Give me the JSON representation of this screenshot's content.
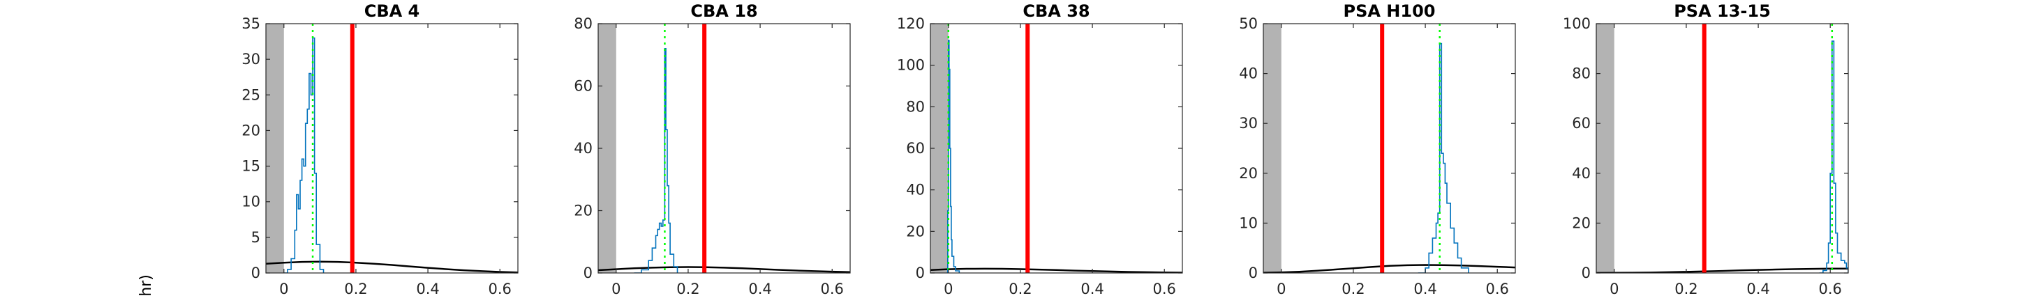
{
  "figure": {
    "ylabel_fragment": "hr)"
  },
  "colors": {
    "shade": "#b3b3b3",
    "histogram": "#0072bd",
    "green_line": "#00ff00",
    "red_line": "#ff0000",
    "curve": "#000000",
    "axis": "#262626"
  },
  "chart_data": [
    {
      "type": "line",
      "title": "CBA 4",
      "xlim": [
        -0.05,
        0.65
      ],
      "ylim": [
        0,
        35
      ],
      "xticks": [
        0,
        0.2,
        0.4,
        0.6
      ],
      "yticks": [
        0,
        5,
        10,
        15,
        20,
        25,
        30,
        35
      ],
      "shaded_x": [
        -0.05,
        0.0
      ],
      "green_x": 0.08,
      "red_x": 0.19,
      "curve": {
        "x": [
          -0.05,
          0.0,
          0.05,
          0.1,
          0.15,
          0.2,
          0.25,
          0.3,
          0.35,
          0.4,
          0.45,
          0.5,
          0.55,
          0.6,
          0.65
        ],
        "y": [
          1.3,
          1.45,
          1.55,
          1.58,
          1.55,
          1.45,
          1.3,
          1.12,
          0.92,
          0.72,
          0.54,
          0.38,
          0.25,
          0.15,
          0.08
        ]
      },
      "histogram": {
        "x": [
          0.0,
          0.01,
          0.02,
          0.03,
          0.035,
          0.04,
          0.045,
          0.05,
          0.055,
          0.06,
          0.065,
          0.07,
          0.075,
          0.08,
          0.085,
          0.09,
          0.1,
          0.11
        ],
        "y": [
          0,
          0.5,
          2,
          6,
          11,
          9,
          13,
          16,
          15,
          21,
          23,
          28,
          25,
          33,
          14,
          4,
          0.5,
          0
        ]
      }
    },
    {
      "type": "line",
      "title": "CBA 18",
      "xlim": [
        -0.05,
        0.65
      ],
      "ylim": [
        0,
        80
      ],
      "xticks": [
        0,
        0.2,
        0.4,
        0.6
      ],
      "yticks": [
        0,
        20,
        40,
        60,
        80
      ],
      "shaded_x": [
        -0.05,
        0.0
      ],
      "green_x": 0.135,
      "red_x": 0.245,
      "curve": {
        "x": [
          -0.05,
          0.0,
          0.05,
          0.1,
          0.15,
          0.2,
          0.25,
          0.3,
          0.35,
          0.4,
          0.45,
          0.5,
          0.55,
          0.6,
          0.65
        ],
        "y": [
          0.9,
          1.2,
          1.5,
          1.7,
          1.85,
          1.9,
          1.85,
          1.7,
          1.5,
          1.25,
          1.0,
          0.78,
          0.58,
          0.42,
          0.3
        ]
      },
      "histogram": {
        "x": [
          0.05,
          0.07,
          0.09,
          0.1,
          0.11,
          0.115,
          0.12,
          0.125,
          0.13,
          0.135,
          0.138,
          0.142,
          0.146,
          0.15,
          0.16,
          0.17
        ],
        "y": [
          0,
          1,
          4,
          8,
          12,
          14,
          16,
          15,
          17,
          72,
          46,
          28,
          16,
          6,
          2,
          0
        ]
      }
    },
    {
      "type": "line",
      "title": "CBA 38",
      "xlim": [
        -0.05,
        0.65
      ],
      "ylim": [
        0,
        120
      ],
      "xticks": [
        0,
        0.2,
        0.4,
        0.6
      ],
      "yticks": [
        0,
        20,
        40,
        60,
        80,
        100,
        120
      ],
      "shaded_x": [
        -0.05,
        0.0
      ],
      "green_x": 0.0,
      "red_x": 0.22,
      "curve": {
        "x": [
          -0.05,
          0.0,
          0.05,
          0.1,
          0.15,
          0.2,
          0.25,
          0.3,
          0.35,
          0.4,
          0.45,
          0.5,
          0.55,
          0.6,
          0.65
        ],
        "y": [
          1.4,
          1.8,
          2.0,
          2.05,
          2.0,
          1.85,
          1.65,
          1.4,
          1.15,
          0.9,
          0.7,
          0.5,
          0.36,
          0.25,
          0.17
        ]
      },
      "histogram": {
        "x": [
          -0.005,
          -0.002,
          0.0,
          0.002,
          0.004,
          0.006,
          0.008,
          0.01,
          0.015,
          0.02,
          0.03
        ],
        "y": [
          0,
          30,
          112,
          98,
          60,
          32,
          16,
          8,
          3,
          1,
          0
        ]
      }
    },
    {
      "type": "line",
      "title": "PSA H100",
      "xlim": [
        -0.05,
        0.65
      ],
      "ylim": [
        0,
        50
      ],
      "xticks": [
        0,
        0.2,
        0.4,
        0.6
      ],
      "yticks": [
        0,
        10,
        20,
        30,
        40,
        50
      ],
      "shaded_x": [
        -0.05,
        0.0
      ],
      "green_x": 0.44,
      "red_x": 0.28,
      "curve": {
        "x": [
          -0.05,
          0.0,
          0.05,
          0.1,
          0.15,
          0.2,
          0.25,
          0.3,
          0.35,
          0.4,
          0.45,
          0.5,
          0.55,
          0.6,
          0.65
        ],
        "y": [
          0.05,
          0.12,
          0.25,
          0.45,
          0.7,
          0.95,
          1.2,
          1.42,
          1.55,
          1.6,
          1.58,
          1.5,
          1.38,
          1.25,
          1.1
        ]
      },
      "histogram": {
        "x": [
          0.38,
          0.4,
          0.41,
          0.42,
          0.43,
          0.435,
          0.44,
          0.445,
          0.45,
          0.455,
          0.46,
          0.47,
          0.48,
          0.49,
          0.5,
          0.52
        ],
        "y": [
          0,
          1,
          4,
          7,
          10,
          12,
          46,
          24,
          22,
          18,
          14,
          9,
          6,
          3,
          1,
          0
        ]
      }
    },
    {
      "type": "line",
      "title": "PSA 13-15",
      "xlim": [
        -0.05,
        0.65
      ],
      "ylim": [
        0,
        100
      ],
      "xticks": [
        0,
        0.2,
        0.4,
        0.6
      ],
      "yticks": [
        0,
        20,
        40,
        60,
        80,
        100
      ],
      "shaded_x": [
        -0.05,
        0.0
      ],
      "green_x": 0.605,
      "red_x": 0.25,
      "curve": {
        "x": [
          -0.05,
          0.0,
          0.05,
          0.1,
          0.15,
          0.2,
          0.25,
          0.3,
          0.35,
          0.4,
          0.45,
          0.5,
          0.55,
          0.6,
          0.65
        ],
        "y": [
          0.02,
          0.05,
          0.1,
          0.18,
          0.3,
          0.45,
          0.62,
          0.82,
          1.02,
          1.22,
          1.4,
          1.55,
          1.66,
          1.72,
          1.75
        ]
      },
      "histogram": {
        "x": [
          0.57,
          0.58,
          0.59,
          0.595,
          0.6,
          0.605,
          0.61,
          0.615,
          0.62,
          0.63,
          0.64,
          0.645,
          0.65
        ],
        "y": [
          0,
          1,
          4,
          12,
          40,
          93,
          36,
          16,
          8,
          5,
          4,
          2,
          0
        ]
      }
    }
  ]
}
